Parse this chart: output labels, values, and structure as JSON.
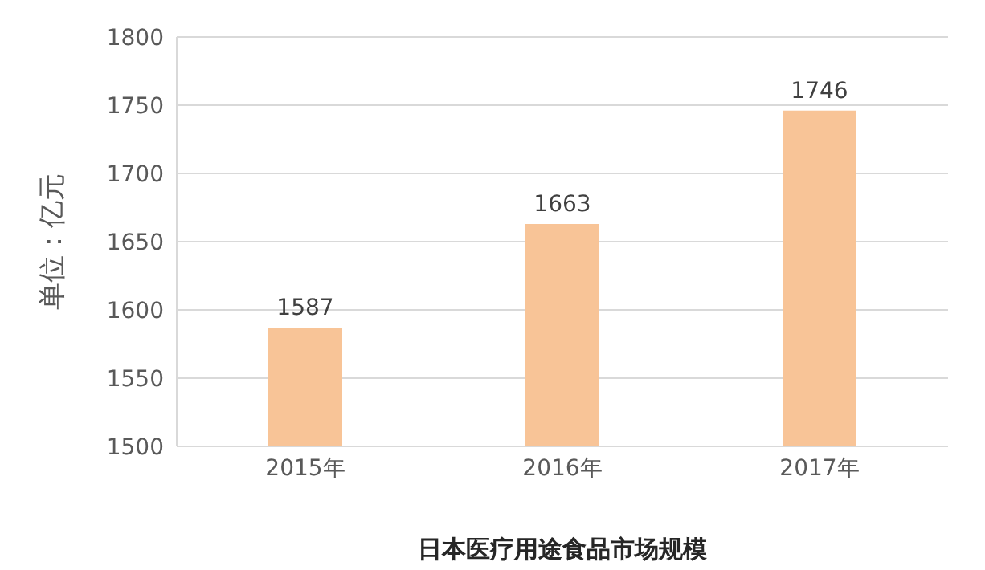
{
  "chart_data": {
    "type": "bar",
    "xlabel": "日本医疗用途食品市场规模",
    "ylabel": "单位：亿元",
    "categories": [
      "2015年",
      "2016年",
      "2017年"
    ],
    "values": [
      1587,
      1663,
      1746
    ],
    "color": "#f8c497",
    "ylim": [
      1500,
      1800
    ],
    "yticks": [
      1500,
      1550,
      1600,
      1650,
      1700,
      1750,
      1800
    ],
    "grid": "y",
    "data_labels": true
  }
}
